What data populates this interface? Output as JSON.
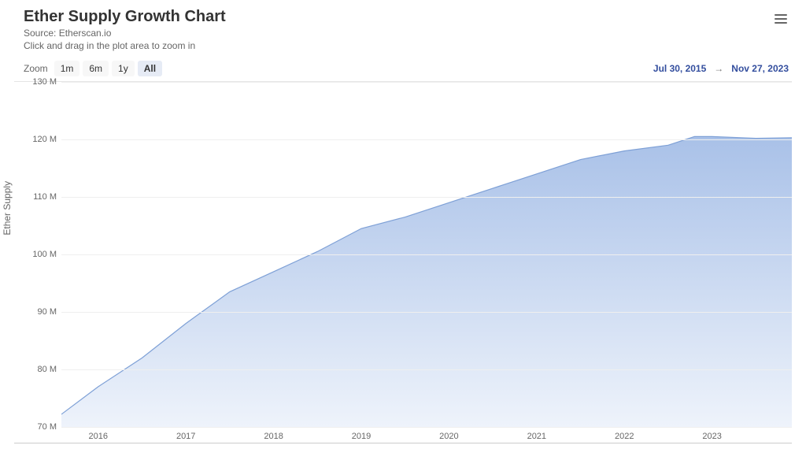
{
  "header": {
    "title": "Ether Supply Growth Chart",
    "source": "Source: Etherscan.io",
    "hint": "Click and drag in the plot area to zoom in"
  },
  "zoom": {
    "label": "Zoom",
    "buttons": [
      {
        "label": "1m",
        "active": false
      },
      {
        "label": "6m",
        "active": false
      },
      {
        "label": "1y",
        "active": false
      },
      {
        "label": "All",
        "active": true
      }
    ]
  },
  "date_range": {
    "from": "Jul 30, 2015",
    "to": "Nov 27, 2023",
    "arrow": "→"
  },
  "chart": {
    "type": "area",
    "y_axis_title": "Ether Supply",
    "ylim": [
      70,
      130
    ],
    "ytick_step": 10,
    "yticks": [
      70,
      80,
      90,
      100,
      110,
      120,
      130
    ],
    "ytick_labels": [
      "70 M",
      "80 M",
      "90 M",
      "100 M",
      "110 M",
      "120 M",
      "130 M"
    ],
    "xlim": [
      2015.58,
      2023.91
    ],
    "xticks": [
      2016,
      2017,
      2018,
      2019,
      2020,
      2021,
      2022,
      2023
    ],
    "xtick_labels": [
      "2016",
      "2017",
      "2018",
      "2019",
      "2020",
      "2021",
      "2022",
      "2023"
    ],
    "series": [
      {
        "name": "ether-supply",
        "fill_top_color": "#a9c1e8",
        "fill_bottom_color": "#eef3fb",
        "stroke_color": "#7ea0d6",
        "stroke_width": 1.2,
        "x": [
          2015.58,
          2016.0,
          2016.5,
          2017.0,
          2017.5,
          2018.0,
          2018.5,
          2019.0,
          2019.5,
          2020.0,
          2020.5,
          2021.0,
          2021.5,
          2022.0,
          2022.5,
          2022.8,
          2023.0,
          2023.5,
          2023.91
        ],
        "y": [
          72.2,
          77.0,
          82.0,
          88.0,
          93.5,
          97.0,
          100.5,
          104.5,
          106.5,
          109.0,
          111.5,
          114.0,
          116.5,
          118.0,
          119.0,
          120.5,
          120.5,
          120.2,
          120.3
        ]
      }
    ],
    "colors": {
      "background": "#ffffff",
      "grid": "#efefef",
      "axis_text": "#666666",
      "range_text": "#334e9e",
      "border_top": "#e5e5e5",
      "border_bottom": "#cccccc"
    },
    "title_fontsize": 20,
    "label_fontsize": 12,
    "tick_fontsize": 11
  }
}
